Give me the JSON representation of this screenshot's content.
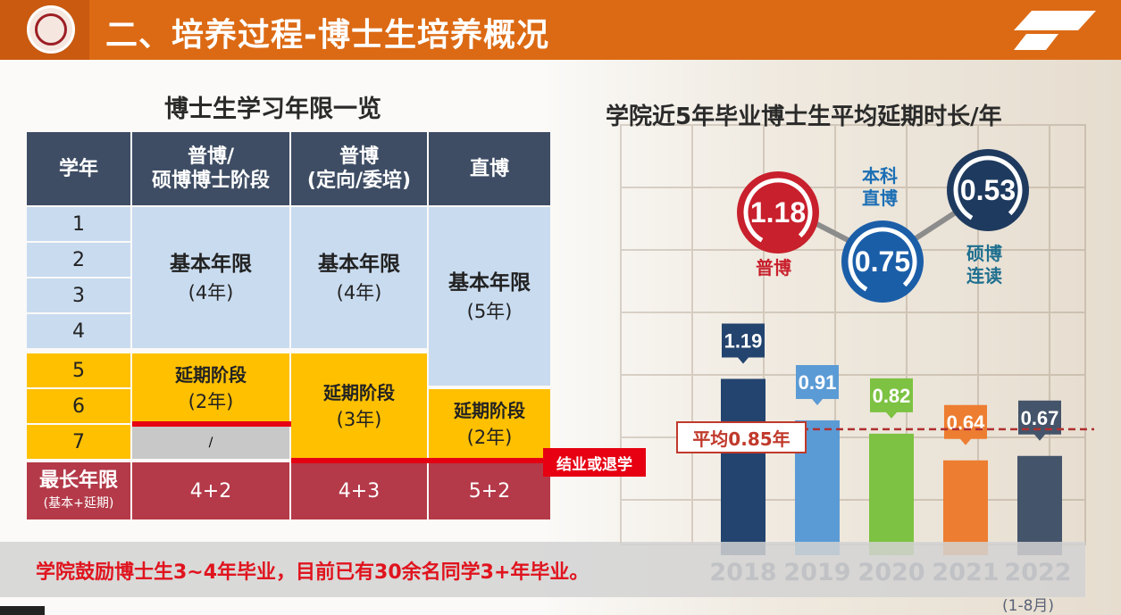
{
  "header": {
    "title": "二、培养过程-博士生培养概况"
  },
  "table": {
    "title": "博士生学习年限一览",
    "headers": [
      "学年",
      "普博/\n硕博博士阶段",
      "普博\n(定向/委培)",
      "直博"
    ],
    "years": [
      "1",
      "2",
      "3",
      "4",
      "5",
      "6",
      "7"
    ],
    "col1": {
      "basic_title": "基本年限",
      "basic_years": "(4年)",
      "ext_title": "延期阶段",
      "ext_years": "(2年)",
      "na": "/"
    },
    "col2": {
      "basic_title": "基本年限",
      "basic_years": "(4年)",
      "ext_title": "延期阶段",
      "ext_years": "(3年)"
    },
    "col3": {
      "basic_title": "基本年限",
      "basic_years": "(5年)",
      "ext_title": "延期阶段",
      "ext_years": "(2年)"
    },
    "max_label": "最长年限",
    "max_sub": "(基本+延期)",
    "max_values": [
      "4+2",
      "4+3",
      "5+2"
    ],
    "end_tag": "结业或退学"
  },
  "note": "学院鼓励博士生3~4年毕业，目前已有30余名同学3+年毕业。",
  "colors": {
    "header": "#dc6a14",
    "table_head": "#3e4d64",
    "basic": "#c9dbef",
    "extend": "#ffc000",
    "max_row": "#b43a49",
    "accent_red": "#e60012"
  },
  "chart": {
    "title": "学院近5年毕业博士生平均延期时长/年",
    "circles": [
      {
        "value": "1.18",
        "label": "普博",
        "color": "#c8202c"
      },
      {
        "value": "0.75",
        "label": "本科\n直博",
        "color": "#1b5ea8"
      },
      {
        "value": "0.53",
        "label": "硕博\n连读",
        "color": "#1e3a5f"
      }
    ],
    "average_label": "平均0.85年",
    "year_note": "(1-8月)"
  },
  "chart_data": {
    "type": "bar",
    "title": "学院近5年毕业博士生平均延期时长/年",
    "categories": [
      "2018",
      "2019",
      "2020",
      "2021",
      "2022"
    ],
    "values": [
      1.19,
      0.91,
      0.82,
      0.64,
      0.67
    ],
    "value_labels": [
      "1.19",
      "0.91",
      "0.82",
      "0.64",
      "0.67"
    ],
    "colors": [
      "#23446e",
      "#5b9bd5",
      "#7dc242",
      "#ed7d31",
      "#44546a"
    ],
    "average": 0.85
  }
}
